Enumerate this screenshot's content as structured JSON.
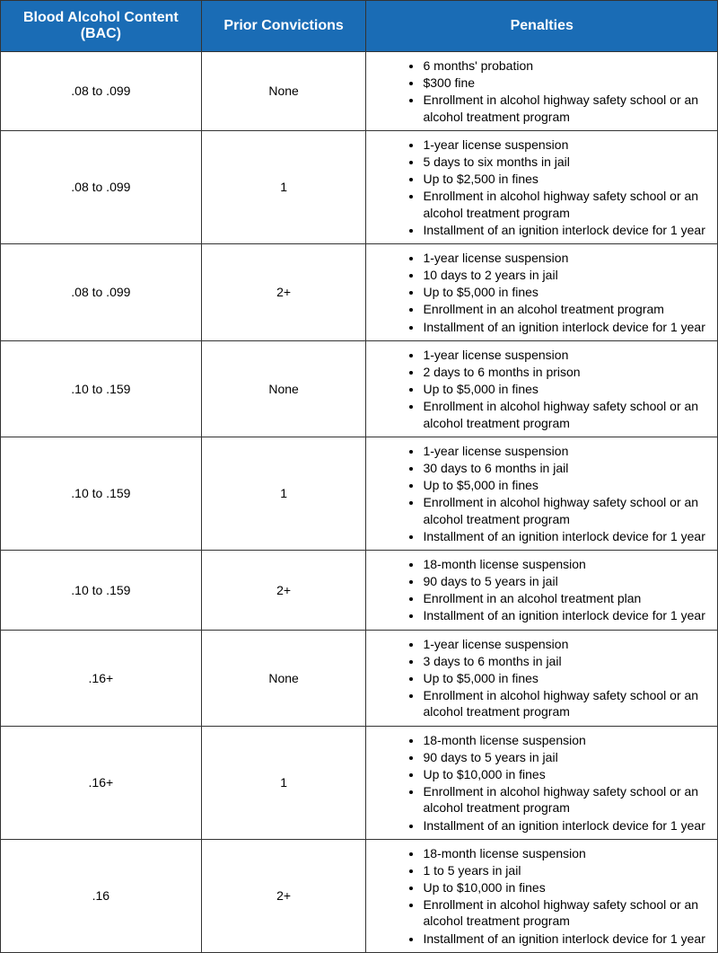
{
  "table": {
    "headers": {
      "bac": "Blood Alcohol Content (BAC)",
      "prior": "Prior Convictions",
      "penalties": "Penalties"
    },
    "rows": [
      {
        "bac": ".08 to .099",
        "prior": "None",
        "penalties": [
          "6 months' probation",
          "$300 fine",
          "Enrollment in alcohol highway safety school or an alcohol treatment program"
        ]
      },
      {
        "bac": ".08 to .099",
        "prior": "1",
        "penalties": [
          "1-year license suspension",
          "5 days to six months in jail",
          "Up to $2,500 in fines",
          "Enrollment in alcohol highway safety school or an alcohol treatment program",
          "Installment of an ignition interlock device for 1 year"
        ]
      },
      {
        "bac": ".08 to .099",
        "prior": "2+",
        "penalties": [
          "1-year license suspension",
          "10 days to 2 years in jail",
          "Up to $5,000 in fines",
          "Enrollment in an alcohol treatment program",
          "Installment of an ignition interlock device for 1 year"
        ]
      },
      {
        "bac": ".10 to .159",
        "prior": "None",
        "penalties": [
          "1-year license suspension",
          "2 days to 6 months in prison",
          "Up to $5,000 in fines",
          "Enrollment in alcohol highway safety school or an alcohol treatment program"
        ]
      },
      {
        "bac": ".10 to .159",
        "prior": "1",
        "penalties": [
          "1-year license suspension",
          "30 days to 6 months in jail",
          "Up to $5,000 in fines",
          "Enrollment in alcohol highway safety school or an alcohol treatment program",
          "Installment of an ignition interlock device for 1 year"
        ]
      },
      {
        "bac": ".10 to .159",
        "prior": "2+",
        "penalties": [
          "18-month license suspension",
          "90 days to 5 years in jail",
          "Enrollment in an alcohol treatment plan",
          "Installment of an ignition interlock device for 1 year"
        ]
      },
      {
        "bac": ".16+",
        "prior": "None",
        "penalties": [
          "1-year license suspension",
          "3 days to 6 months in jail",
          "Up to $5,000 in fines",
          "Enrollment in alcohol highway safety school or an alcohol treatment program"
        ]
      },
      {
        "bac": ".16+",
        "prior": "1",
        "penalties": [
          "18-month license suspension",
          "90 days to 5 years in jail",
          "Up to $10,000 in fines",
          "Enrollment in alcohol highway safety school or an alcohol treatment program",
          "Installment of an ignition interlock device for 1 year"
        ]
      },
      {
        "bac": ".16",
        "prior": "2+",
        "penalties": [
          "18-month license suspension",
          "1 to 5 years in jail",
          "Up to $10,000 in fines",
          "Enrollment in alcohol highway safety school or an alcohol treatment program",
          "Installment of an ignition interlock device for 1 year"
        ]
      }
    ],
    "header_bg": "#1a6cb5",
    "header_color": "#ffffff",
    "border_color": "#333333",
    "font_family": "Arial",
    "cell_font_size": 14,
    "header_font_size": 16
  }
}
